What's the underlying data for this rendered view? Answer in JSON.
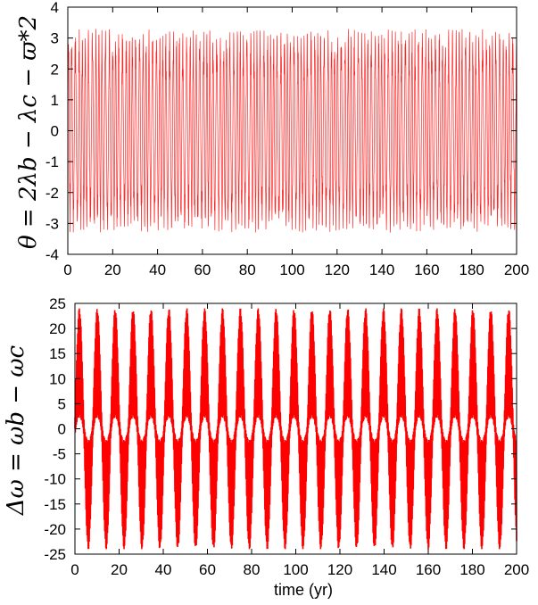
{
  "colors": {
    "series": "#ff0000",
    "axis": "#000000",
    "background": "#ffffff"
  },
  "chart_data": [
    {
      "type": "line",
      "ylabel": "θ = 2λb − λc − ϖ*2",
      "xlabel": "",
      "xlim": [
        0,
        200
      ],
      "ylim": [
        -4,
        4
      ],
      "xticks": [
        0,
        20,
        40,
        60,
        80,
        100,
        120,
        140,
        160,
        180,
        200
      ],
      "yticks": [
        -4,
        -3,
        -2,
        -1,
        0,
        1,
        2,
        3,
        4
      ],
      "series": [
        {
          "description": "rapid oscillation between about -3.3 and +3.3",
          "envelope": [
            -3.3,
            3.3
          ],
          "oscillation_period": 1.5
        }
      ]
    },
    {
      "type": "line",
      "ylabel": "Δω = ωb − ωc",
      "xlabel": "time (yr)",
      "xlim": [
        0,
        200
      ],
      "ylim": [
        -25,
        25
      ],
      "xticks": [
        0,
        20,
        40,
        60,
        80,
        100,
        120,
        140,
        160,
        180,
        200
      ],
      "yticks": [
        -25,
        -20,
        -15,
        -10,
        -5,
        0,
        5,
        10,
        15,
        20,
        25
      ],
      "series": [
        {
          "description": "beating oscillation, amplitude about 24, beat period about 8 yr",
          "amplitude": 24,
          "beat_period": 8.1,
          "fast_period": 0.25,
          "secondary_amplitude": 5
        }
      ]
    }
  ]
}
